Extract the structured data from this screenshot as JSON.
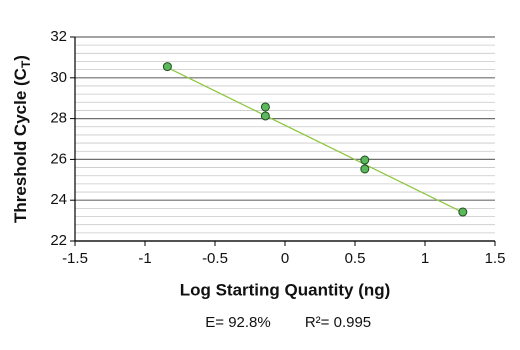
{
  "chart_data": {
    "type": "scatter",
    "xlabel": "Log Starting Quantity (ng)",
    "ylabel": {
      "text": "Threshold Cycle (C",
      "sub": "T",
      "end": ")"
    },
    "x": [
      -0.84,
      -0.14,
      -0.14,
      0.57,
      0.57,
      1.27
    ],
    "values": [
      30.55,
      28.57,
      28.13,
      25.97,
      25.53,
      23.42
    ],
    "color": "#5cb85c",
    "trendline": {
      "x": [
        -0.84,
        1.27
      ],
      "y": [
        30.5,
        23.4
      ],
      "color": "#8dc63f"
    },
    "xlim": [
      -1.5,
      1.5
    ],
    "xticks": [
      -1.5,
      -1,
      -0.5,
      0,
      0.5,
      1,
      1.5
    ],
    "ylim": [
      22,
      32
    ],
    "yticks": [
      22,
      24,
      26,
      28,
      30,
      32
    ],
    "minor_yticks": [
      22.4,
      22.8,
      23.2,
      23.6,
      24.4,
      24.8,
      25.2,
      25.6,
      26.4,
      26.8,
      27.2,
      27.6,
      28.4,
      28.8,
      29.2,
      29.6,
      30.4,
      30.8,
      31.2,
      31.6
    ],
    "grid": true,
    "annotations": [
      "E= 92.8%",
      "R²= 0.995"
    ]
  }
}
